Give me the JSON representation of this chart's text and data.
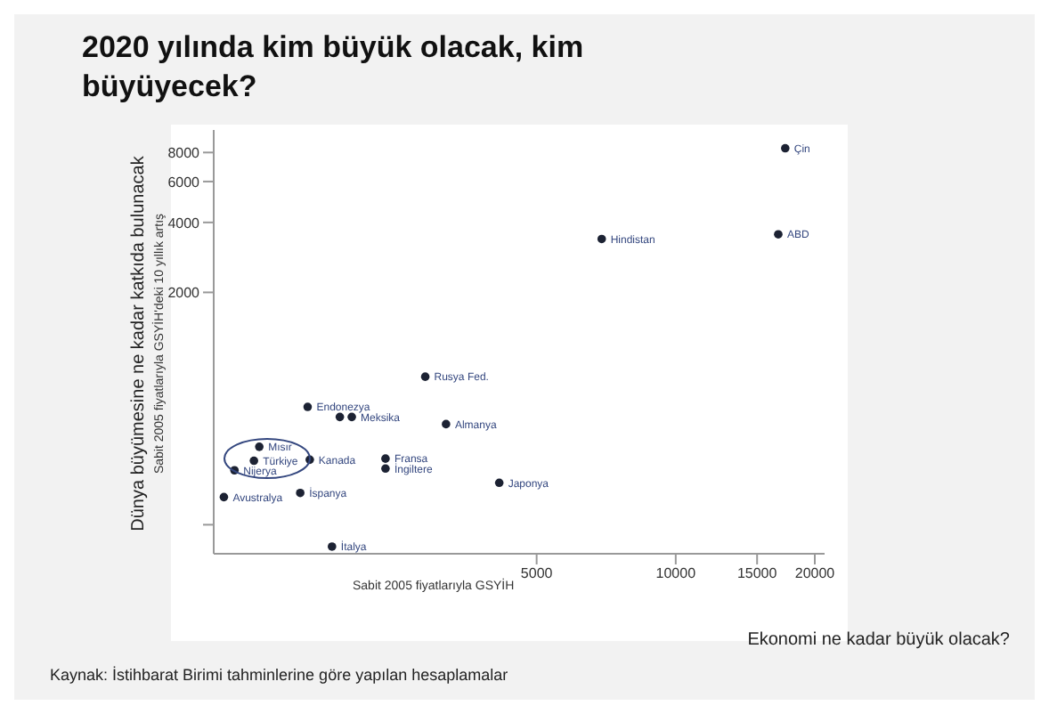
{
  "chart_data": {
    "type": "scatter",
    "title": "2020 yılında kim büyük olacak, kim büyüyecek?",
    "xlabel": "Sabit 2005 fiyatlarıyla GSYİH",
    "ylabel": "Sabit 2005 fiyatlarıyla GSYİH'deki 10 yıllık artış",
    "log": "xy",
    "grid": false,
    "marker": "circle",
    "xlim": [
      1000,
      21000
    ],
    "xticks": [
      5000,
      10000,
      15000,
      20000
    ],
    "ylim": [
      150,
      10000
    ],
    "yticks": [
      {
        "value": 200,
        "label": null
      },
      2000,
      4000,
      6000,
      8000
    ],
    "series": [
      {
        "color": "#1c2233",
        "x": [
          17260,
          16670,
          6915,
          2870,
          1597,
          1875,
          1990,
          3183,
          1255,
          1222,
          1109,
          1614,
          2354,
          2354,
          4150,
          1052,
          1539,
          1803
        ],
        "values": [
          8340,
          3555,
          3395,
          867,
          643,
          582,
          582,
          542,
          433,
          377,
          343,
          381,
          385,
          349,
          303,
          263,
          274,
          161
        ]
      }
    ],
    "annotations": [
      "Dünya büyümesine ne kadar katkıda bulunacak",
      "Ekonomi ne kadar büyük olacak?",
      "Kaynak: İstihbarat Birimi tahminlerine göre yapılan hesaplamalar",
      {
        "text": "Çin",
        "x": 17260,
        "y": 8340
      },
      {
        "text": "ABD",
        "x": 16670,
        "y": 3555
      },
      {
        "text": "Hindistan",
        "x": 6915,
        "y": 3395
      },
      {
        "text": "Rusya Fed.",
        "x": 2870,
        "y": 867
      },
      {
        "text": "Endonezya",
        "x": 1597,
        "y": 643
      },
      {
        "text": "Meksika",
        "x": 1990,
        "y": 582
      },
      {
        "text": "Almanya",
        "x": 3183,
        "y": 542
      },
      {
        "text": "Mısır",
        "x": 1255,
        "y": 433
      },
      {
        "text": "Türkiye",
        "x": 1222,
        "y": 377
      },
      {
        "text": "Nijerya",
        "x": 1109,
        "y": 343
      },
      {
        "text": "Kanada",
        "x": 1614,
        "y": 381
      },
      {
        "text": "Fransa",
        "x": 2354,
        "y": 385
      },
      {
        "text": "İngiltere",
        "x": 2354,
        "y": 349
      },
      {
        "text": "Japonya",
        "x": 4150,
        "y": 303
      },
      {
        "text": "Avustralya",
        "x": 1052,
        "y": 263
      },
      {
        "text": "İspanya",
        "x": 1539,
        "y": 274
      },
      {
        "text": "İtalya",
        "x": 1803,
        "y": 161
      }
    ]
  }
}
